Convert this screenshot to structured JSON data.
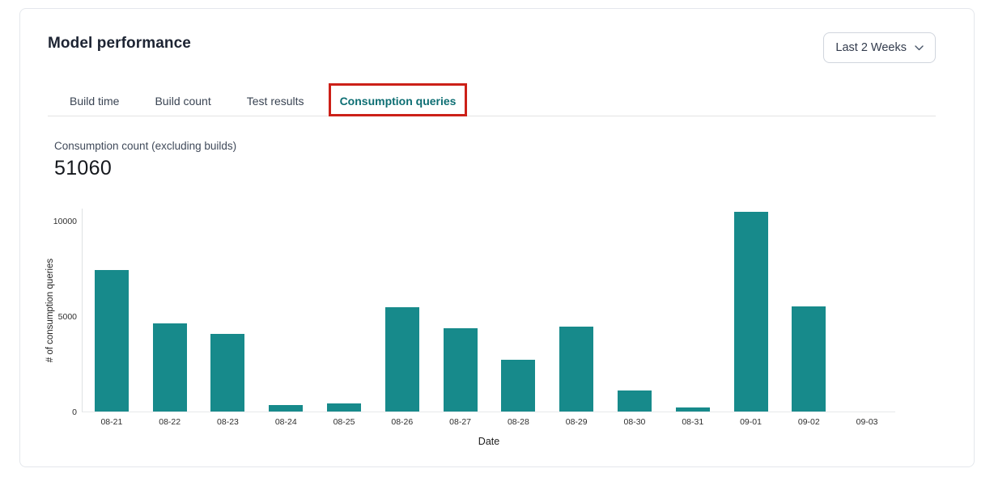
{
  "header": {
    "title": "Model performance",
    "range_selector": {
      "value": "Last 2 Weeks"
    }
  },
  "tabs": {
    "items": [
      {
        "label": "Build time"
      },
      {
        "label": "Build count"
      },
      {
        "label": "Test results"
      },
      {
        "label": "Consumption queries"
      }
    ],
    "active_index": 3
  },
  "annotation": {
    "type": "highlight-box",
    "target": "tab-consumption-queries",
    "color": "#cc2018"
  },
  "stat": {
    "label": "Consumption count (excluding builds)",
    "value": "51060"
  },
  "chart_data": {
    "type": "bar",
    "title": "",
    "categories": [
      "08-21",
      "08-22",
      "08-23",
      "08-24",
      "08-25",
      "08-26",
      "08-27",
      "08-28",
      "08-29",
      "08-30",
      "08-31",
      "09-01",
      "09-02",
      "09-03"
    ],
    "values": [
      7400,
      4600,
      4050,
      330,
      440,
      5480,
      4350,
      2700,
      4430,
      1120,
      200,
      10450,
      5510,
      0
    ],
    "xlabel": "Date",
    "ylabel": "# of consumption queries",
    "ylim": [
      0,
      10680
    ],
    "yticks": [
      0,
      5000,
      10000
    ],
    "grid": false,
    "legend": false,
    "bar_color": "#178a8b"
  },
  "colors": {
    "accent_teal": "#0d6e73",
    "bar_teal": "#178a8b",
    "annotation_red": "#cc2018",
    "card_border": "#e4e7ec",
    "title_text": "#1d2433"
  }
}
